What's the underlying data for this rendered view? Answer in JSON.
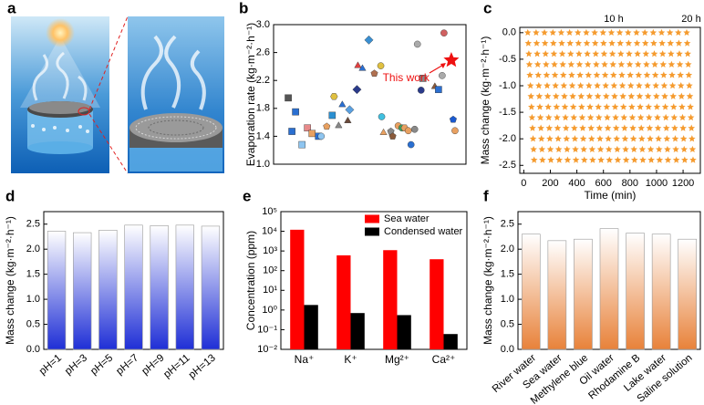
{
  "chart_data": [
    {
      "type": "image",
      "label": "a"
    },
    {
      "type": "scatter",
      "label": "b",
      "ylabel": "Evaporation rate (kg·m⁻²·h⁻¹)",
      "x": [
        8,
        12,
        10,
        15.5,
        18.5,
        21,
        24.5,
        26,
        29,
        32,
        33,
        35.5,
        37.5,
        40.5,
        41.5,
        45.5,
        46,
        48.5,
        52,
        55,
        58.5,
        59,
        60,
        64,
        65,
        68,
        70,
        71.5,
        73.5,
        75,
        77,
        78.5,
        80.5,
        81.5,
        88,
        90,
        92,
        93,
        98,
        99
      ],
      "values": [
        1.95,
        1.75,
        1.47,
        1.28,
        1.52,
        1.44,
        1.4,
        1.4,
        1.54,
        1.7,
        1.97,
        1.55,
        1.85,
        1.62,
        1.78,
        2.07,
        2.41,
        2.37,
        2.78,
        2.3,
        2.41,
        1.68,
        1.45,
        1.47,
        1.4,
        1.55,
        1.52,
        1.52,
        1.48,
        1.28,
        1.5,
        2.72,
        2.06,
        2.23,
        2.11,
        2.07,
        2.27,
        2.88,
        1.64,
        1.48
      ],
      "colors": [
        "#555555",
        "#2a6fd1",
        "#2a6fd1",
        "#8ec5f0",
        "#e88a8a",
        "#e8a060",
        "#2a6fd1",
        "#8ec5f0",
        "#e8a060",
        "#2a8fd1",
        "#e0c040",
        "#888888",
        "#2a6fd1",
        "#6b4a3a",
        "#5aa0e0",
        "#2a3a8a",
        "#e04040",
        "#2a6fd1",
        "#3a8fd1",
        "#b07050",
        "#e0c040",
        "#40c0e0",
        "#e8a060",
        "#888888",
        "#8a5a3a",
        "#e8a060",
        "#40a060",
        "#e8a060",
        "#e8a060",
        "#2a6fd1",
        "#888888",
        "#aaaaaa",
        "#2a3a8a",
        "#888888",
        "#8a5a3a",
        "#2a6fd1",
        "#aaaaaa",
        "#d06060",
        "#1a5ad1",
        "#e8a060"
      ],
      "markers": [
        "square",
        "square",
        "square",
        "square",
        "square",
        "square",
        "square",
        "circle",
        "pentagon",
        "square",
        "hexagon",
        "triangle",
        "triangle",
        "triangle",
        "diamond",
        "diamond",
        "triangle",
        "triangle",
        "diamond",
        "pentagon",
        "circle",
        "circle",
        "triangle",
        "pentagon",
        "pentagon",
        "circle",
        "circle",
        "hexagon",
        "circle",
        "circle",
        "circle",
        "circle",
        "circle",
        "square",
        "triangle",
        "square",
        "circle",
        "circle",
        "pentagon",
        "circle"
      ],
      "highlight": {
        "label": "This work",
        "x": 97,
        "value": 2.49,
        "color": "#ee1111"
      },
      "xlim": [
        0,
        105
      ],
      "ylim": [
        1.0,
        3.0
      ],
      "yticks": [
        {
          "value": 1,
          "label": "1.0"
        },
        1.4,
        1.8,
        2.2,
        2.6,
        {
          "value": 3,
          "label": "3.0"
        }
      ]
    },
    {
      "type": "scatter",
      "label": "c",
      "xlabel": "Time (min)",
      "ylabel": "Mass change (kg·m⁻²·h⁻¹)",
      "annotations": [
        "10 h",
        "20 h"
      ],
      "marker": "star",
      "color": "#f59b2f",
      "xlim": [
        -30,
        1330
      ],
      "xticks": [
        0,
        200,
        400,
        600,
        800,
        1000,
        1200
      ],
      "ylim": [
        -2.65,
        0.1
      ],
      "yticks": [
        {
          "value": 0,
          "label": "0.0"
        },
        -0.5,
        {
          "value": -1,
          "label": "-1.0"
        },
        -1.5,
        {
          "value": -2,
          "label": "-2.0"
        },
        -2.5
      ],
      "series": [
        {
          "x": [
            30,
            34,
            38,
            42,
            46,
            50,
            54,
            58,
            62,
            66,
            70,
            74,
            78
          ],
          "values": [
            0,
            -0.2,
            -0.4,
            -0.6,
            -0.8,
            -1,
            -1.2,
            -1.4,
            -1.6,
            -1.8,
            -2,
            -2.2,
            -2.4
          ]
        },
        {
          "x": [
            93,
            97,
            101,
            105,
            109,
            113,
            117,
            121,
            125,
            129,
            133,
            137,
            141
          ],
          "values": [
            0,
            -0.2,
            -0.4,
            -0.6,
            -0.8,
            -1,
            -1.2,
            -1.4,
            -1.6,
            -1.8,
            -2,
            -2.2,
            -2.4
          ]
        },
        {
          "x": [
            156,
            160,
            164,
            168,
            172,
            176,
            180,
            184,
            188,
            192,
            196,
            200,
            204
          ],
          "values": [
            0,
            -0.2,
            -0.4,
            -0.6,
            -0.8,
            -1,
            -1.2,
            -1.4,
            -1.6,
            -1.8,
            -2,
            -2.2,
            -2.4
          ]
        },
        {
          "x": [
            219,
            223,
            227,
            231,
            235,
            239,
            243,
            247,
            251,
            255,
            259,
            263,
            267
          ],
          "values": [
            0,
            -0.2,
            -0.4,
            -0.6,
            -0.8,
            -1,
            -1.2,
            -1.4,
            -1.6,
            -1.8,
            -2,
            -2.2,
            -2.4
          ]
        },
        {
          "x": [
            282,
            286,
            290,
            294,
            298,
            302,
            306,
            310,
            314,
            318,
            322,
            326,
            330
          ],
          "values": [
            0,
            -0.2,
            -0.4,
            -0.6,
            -0.8,
            -1,
            -1.2,
            -1.4,
            -1.6,
            -1.8,
            -2,
            -2.2,
            -2.4
          ]
        },
        {
          "x": [
            345,
            349,
            353,
            357,
            361,
            365,
            369,
            373,
            377,
            381,
            385,
            389,
            393
          ],
          "values": [
            0,
            -0.2,
            -0.4,
            -0.6,
            -0.8,
            -1,
            -1.2,
            -1.4,
            -1.6,
            -1.8,
            -2,
            -2.2,
            -2.4
          ]
        },
        {
          "x": [
            408,
            412,
            416,
            420,
            424,
            428,
            432,
            436,
            440,
            444,
            448,
            452,
            456
          ],
          "values": [
            0,
            -0.2,
            -0.4,
            -0.6,
            -0.8,
            -1,
            -1.2,
            -1.4,
            -1.6,
            -1.8,
            -2,
            -2.2,
            -2.4
          ]
        },
        {
          "x": [
            471,
            475,
            479,
            483,
            487,
            491,
            495,
            499,
            503,
            507,
            511,
            515,
            519
          ],
          "values": [
            0,
            -0.2,
            -0.4,
            -0.6,
            -0.8,
            -1,
            -1.2,
            -1.4,
            -1.6,
            -1.8,
            -2,
            -2.2,
            -2.4
          ]
        },
        {
          "x": [
            534,
            538,
            542,
            546,
            550,
            554,
            558,
            562,
            566,
            570,
            574,
            578,
            582
          ],
          "values": [
            0,
            -0.2,
            -0.4,
            -0.6,
            -0.8,
            -1,
            -1.2,
            -1.4,
            -1.6,
            -1.8,
            -2,
            -2.2,
            -2.4
          ]
        },
        {
          "x": [
            597,
            601,
            605,
            609,
            613,
            617,
            621,
            625,
            629,
            633,
            637,
            641,
            645
          ],
          "values": [
            0,
            -0.2,
            -0.4,
            -0.6,
            -0.8,
            -1,
            -1.2,
            -1.4,
            -1.6,
            -1.8,
            -2,
            -2.2,
            -2.4
          ]
        },
        {
          "x": [
            660,
            664,
            668,
            672,
            676,
            680,
            684,
            688,
            692,
            696,
            700,
            704,
            708
          ],
          "values": [
            0,
            -0.2,
            -0.4,
            -0.6,
            -0.8,
            -1,
            -1.2,
            -1.4,
            -1.6,
            -1.8,
            -2,
            -2.2,
            -2.4
          ]
        },
        {
          "x": [
            723,
            727,
            731,
            735,
            739,
            743,
            747,
            751,
            755,
            759,
            763,
            767,
            771
          ],
          "values": [
            0,
            -0.2,
            -0.4,
            -0.6,
            -0.8,
            -1,
            -1.2,
            -1.4,
            -1.6,
            -1.8,
            -2,
            -2.2,
            -2.4
          ]
        },
        {
          "x": [
            786,
            790,
            794,
            798,
            802,
            806,
            810,
            814,
            818,
            822,
            826,
            830,
            834
          ],
          "values": [
            0,
            -0.2,
            -0.4,
            -0.6,
            -0.8,
            -1,
            -1.2,
            -1.4,
            -1.6,
            -1.8,
            -2,
            -2.2,
            -2.4
          ]
        },
        {
          "x": [
            849,
            853,
            857,
            861,
            865,
            869,
            873,
            877,
            881,
            885,
            889,
            893,
            897
          ],
          "values": [
            0,
            -0.2,
            -0.4,
            -0.6,
            -0.8,
            -1,
            -1.2,
            -1.4,
            -1.6,
            -1.8,
            -2,
            -2.2,
            -2.4
          ]
        },
        {
          "x": [
            912,
            916,
            920,
            924,
            928,
            932,
            936,
            940,
            944,
            948,
            952,
            956,
            960
          ],
          "values": [
            0,
            -0.2,
            -0.4,
            -0.6,
            -0.8,
            -1,
            -1.2,
            -1.4,
            -1.6,
            -1.8,
            -2,
            -2.2,
            -2.4
          ]
        },
        {
          "x": [
            975,
            979,
            983,
            987,
            991,
            995,
            999,
            1003,
            1007,
            1011,
            1015,
            1019,
            1023
          ],
          "values": [
            0,
            -0.2,
            -0.4,
            -0.6,
            -0.8,
            -1,
            -1.2,
            -1.4,
            -1.6,
            -1.8,
            -2,
            -2.2,
            -2.4
          ]
        },
        {
          "x": [
            1038,
            1042,
            1046,
            1050,
            1054,
            1058,
            1062,
            1066,
            1070,
            1074,
            1078,
            1082,
            1086
          ],
          "values": [
            0,
            -0.2,
            -0.4,
            -0.6,
            -0.8,
            -1,
            -1.2,
            -1.4,
            -1.6,
            -1.8,
            -2,
            -2.2,
            -2.4
          ]
        },
        {
          "x": [
            1101,
            1105,
            1109,
            1113,
            1117,
            1121,
            1125,
            1129,
            1133,
            1137,
            1141,
            1145,
            1149
          ],
          "values": [
            0,
            -0.2,
            -0.4,
            -0.6,
            -0.8,
            -1,
            -1.2,
            -1.4,
            -1.6,
            -1.8,
            -2,
            -2.2,
            -2.4
          ]
        },
        {
          "x": [
            1164,
            1168,
            1172,
            1176,
            1180,
            1184,
            1188,
            1192,
            1196,
            1200,
            1204,
            1208,
            1212
          ],
          "values": [
            0,
            -0.2,
            -0.4,
            -0.6,
            -0.8,
            -1,
            -1.2,
            -1.4,
            -1.6,
            -1.8,
            -2,
            -2.2,
            -2.4
          ]
        },
        {
          "x": [
            1227,
            1231,
            1235,
            1239,
            1243,
            1247,
            1251,
            1255,
            1259,
            1263,
            1267,
            1271,
            1275
          ],
          "values": [
            0,
            -0.2,
            -0.4,
            -0.6,
            -0.8,
            -1,
            -1.2,
            -1.4,
            -1.6,
            -1.8,
            -2,
            -2.2,
            -2.4
          ]
        }
      ]
    },
    {
      "type": "bar",
      "label": "d",
      "ylabel": "Mass change (kg·m⁻²·h⁻¹)",
      "categories": [
        "pH=1",
        "pH=3",
        "pH=5",
        "pH=7",
        "pH=9",
        "pH=11",
        "pH=13"
      ],
      "values": [
        2.36,
        2.33,
        2.38,
        2.48,
        2.47,
        2.48,
        2.46
      ],
      "color": "#1f2fd6",
      "gradient": true,
      "ylim": [
        0,
        2.75
      ],
      "yticks": [
        {
          "value": 0,
          "label": "0.0"
        },
        0.5,
        {
          "value": 1,
          "label": "1.0"
        },
        1.5,
        {
          "value": 2,
          "label": "2.0"
        },
        2.5
      ]
    },
    {
      "type": "bar",
      "label": "e",
      "ylabel": "Concentration (ppm)",
      "log": true,
      "legend": "upper right",
      "categories": [
        "Na⁺",
        "K⁺",
        "Mg²⁺",
        "Ca²⁺"
      ],
      "series": [
        {
          "name": "Sea water",
          "color": "#ff0000",
          "values": [
            12000,
            600,
            1100,
            380
          ]
        },
        {
          "name": "Condensed water",
          "color": "#000000",
          "values": [
            1.8,
            0.7,
            0.55,
            0.06
          ]
        }
      ],
      "ylim": [
        0.01,
        100000
      ],
      "yticks": [
        {
          "value": 0.01,
          "label": "10⁻²"
        },
        {
          "value": 0.1,
          "label": "10⁻¹"
        },
        {
          "value": 1,
          "label": "10⁰"
        },
        {
          "value": 10,
          "label": "10¹"
        },
        {
          "value": 100,
          "label": "10²"
        },
        {
          "value": 1000,
          "label": "10³"
        },
        {
          "value": 10000,
          "label": "10⁴"
        },
        {
          "value": 100000,
          "label": "10⁵"
        }
      ]
    },
    {
      "type": "bar",
      "label": "f",
      "ylabel": "Mass change (kg·m⁻²·h⁻¹)",
      "categories": [
        "River water",
        "Sea water",
        "Methylene blue",
        "Oil water",
        "Rhodamine B",
        "Lake water",
        "Saline solution"
      ],
      "values": [
        2.3,
        2.17,
        2.2,
        2.41,
        2.32,
        2.3,
        2.2
      ],
      "color": "#e8823a",
      "gradient": true,
      "ylim": [
        0,
        2.75
      ],
      "yticks": [
        {
          "value": 0,
          "label": "0.0"
        },
        0.5,
        {
          "value": 1,
          "label": "1.0"
        },
        1.5,
        {
          "value": 2,
          "label": "2.0"
        },
        2.5
      ]
    }
  ]
}
